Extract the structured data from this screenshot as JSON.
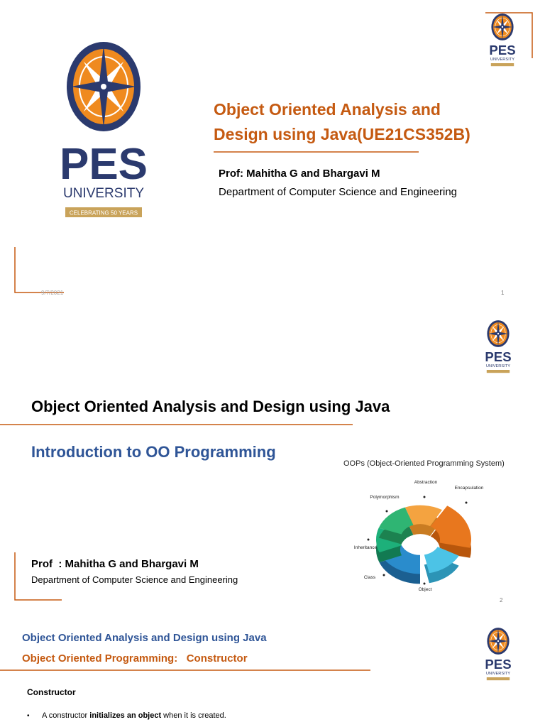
{
  "slides": [
    {
      "logo": {
        "name": "PES",
        "subtitle": "UNIVERSITY",
        "badge": "CELEBRATING 50 YEARS"
      },
      "corner_logo": {
        "name": "PES",
        "subtitle": "UNIVERSITY"
      },
      "title_lines": [
        "Object Oriented Analysis and",
        "Design using Java(UE21CS352B)"
      ],
      "professor": "Prof: Mahitha G and Bhargavi M",
      "department": "Department of Computer Science and Engineering",
      "date": "9/7/2021",
      "page_number": "1"
    },
    {
      "corner_logo": {
        "name": "PES",
        "subtitle": "UNIVERSITY"
      },
      "course": "Object Oriented Analysis and Design using Java",
      "topic": "Introduction to OO Programming",
      "diagram": {
        "title": "OOPs (Object-Oriented Programming System)",
        "labels": [
          "Abstraction",
          "Encapsulation",
          "Polymorphism",
          "Inheritance",
          "Class",
          "Object"
        ]
      },
      "professor": "Prof  : Mahitha G and Bhargavi M",
      "department": "Department of Computer Science and Engineering",
      "page_number": "2"
    },
    {
      "corner_logo": {
        "name": "PES",
        "subtitle": "UNIVERSITY"
      },
      "course": "Object Oriented Analysis and Design using Java",
      "topic": "Object Oriented Programming:   Constructor",
      "heading": "Constructor",
      "bullets": [
        [
          "A constructor ",
          "initializes an object",
          " when it is created."
        ]
      ]
    }
  ]
}
